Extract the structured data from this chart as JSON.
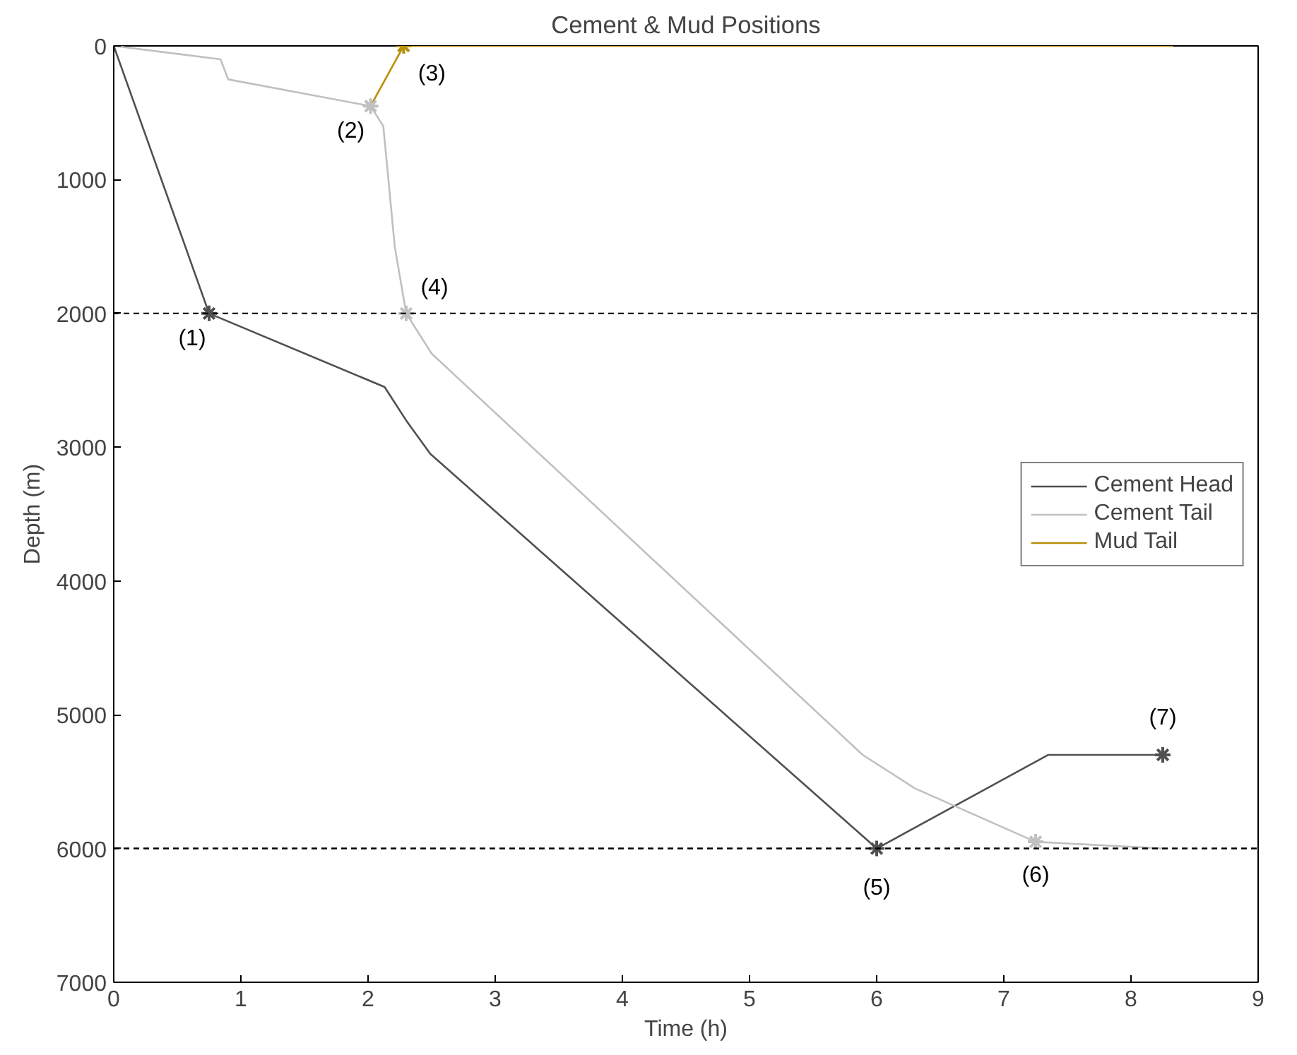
{
  "chart_data": {
    "type": "line",
    "title": "Cement & Mud Positions",
    "xlabel": "Time (h)",
    "ylabel": "Depth (m)",
    "xlim": [
      0,
      9
    ],
    "ylim": [
      7000,
      0
    ],
    "xticks": [
      0,
      1,
      2,
      3,
      4,
      5,
      6,
      7,
      8,
      9
    ],
    "yticks": [
      0,
      1000,
      2000,
      3000,
      4000,
      5000,
      6000,
      7000
    ],
    "grid": false,
    "legend": "right",
    "marker": "none",
    "line_style": "solid",
    "series": [
      {
        "name": "Cement Head",
        "color": "#505050",
        "x": [
          0,
          0.75,
          2.13,
          2.3,
          2.49,
          6,
          7.35,
          8.25
        ],
        "values": [
          0,
          2000,
          2550,
          2800,
          3050,
          6000,
          5300,
          5300
        ]
      },
      {
        "name": "Cement Tail",
        "color": "#c0c0c0",
        "x": [
          0,
          0.84,
          0.9,
          2.02,
          2.12,
          2.21,
          2.3,
          2.5,
          5.89,
          6.3,
          7.25,
          8.25
        ],
        "values": [
          0,
          100,
          250,
          450,
          600,
          1500,
          2000,
          2300,
          5300,
          5550,
          5950,
          6000
        ]
      },
      {
        "name": "Mud Tail",
        "color": "#b8900a",
        "x": [
          2.02,
          2.28,
          8.33
        ],
        "values": [
          450,
          0,
          0
        ]
      },
      {
        "type": "scatter",
        "marker": "cross",
        "color": "#505050",
        "x": [
          0.75,
          6,
          8.25
        ],
        "values": [
          2000,
          6000,
          5300
        ]
      },
      {
        "type": "scatter",
        "marker": "cross",
        "color": "#c0c0c0",
        "x": [
          2.02,
          2.3,
          7.25
        ],
        "values": [
          450,
          2000,
          5950
        ]
      },
      {
        "type": "scatter",
        "marker": "cross",
        "color": "#b8900a",
        "x": [
          2.28
        ],
        "values": [
          0
        ]
      }
    ],
    "ref_lines": [
      {
        "axis": "y",
        "value": 2000,
        "color": "#000000",
        "line_style": "dashed"
      },
      {
        "axis": "y",
        "value": 6000,
        "color": "#000000",
        "line_style": "dashed"
      }
    ],
    "annotations": [
      {
        "text": "(1)",
        "x": 0.75,
        "y": 2000
      },
      {
        "text": "(2)",
        "x": 2.02,
        "y": 450
      },
      {
        "text": "(3)",
        "x": 2.28,
        "y": 0
      },
      {
        "text": "(4)",
        "x": 2.3,
        "y": 2000
      },
      {
        "text": "(5)",
        "x": 6,
        "y": 6000
      },
      {
        "text": "(6)",
        "x": 7.25,
        "y": 5950
      },
      {
        "text": "(7)",
        "x": 8.25,
        "y": 5300
      }
    ]
  }
}
